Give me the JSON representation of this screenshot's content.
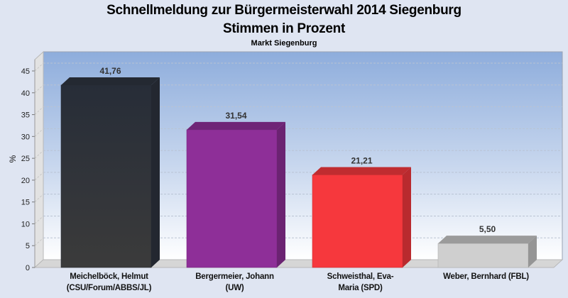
{
  "chart_data": {
    "type": "bar",
    "title": "Schnellmeldung zur Bürgermeisterwahl 2014 Siegenburg",
    "subtitle": "Stimmen in Prozent",
    "caption": "Markt Siegenburg",
    "xlabel": "",
    "ylabel": "%",
    "ylim": [
      0,
      45
    ],
    "yticks": [
      "0",
      "5",
      "10",
      "15",
      "20",
      "25",
      "30",
      "35",
      "40",
      "45"
    ],
    "grid": true,
    "categories": [
      "Meichelböck, Helmut\n(CSU/Forum/ABBS/JL)",
      "Bergermeier, Johann\n(UW)",
      "Schweisthal, Eva-\nMaria (SPD)",
      "Weber, Bernhard (FBL)"
    ],
    "values": [
      41.76,
      31.54,
      21.21,
      5.5
    ],
    "value_labels": [
      "41,76",
      "31,54",
      "21,21",
      "5,50"
    ],
    "colors": [
      "#2e3440",
      "#8e2f98",
      "#f6383d",
      "#cfcfcf"
    ]
  }
}
